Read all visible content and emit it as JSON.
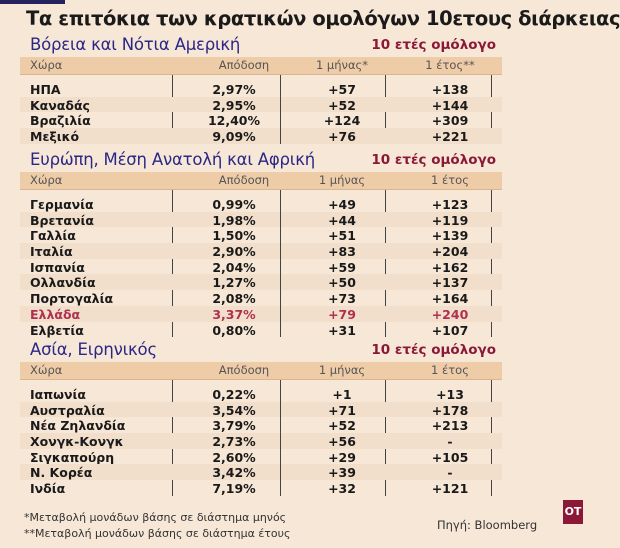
{
  "title": "Τα επιτόκια των κρατικών ομολόγων 10ετους διάρκειας",
  "colors": {
    "heading": "#2b2787",
    "accent": "#8c1838",
    "header_band": "#efcca8",
    "background": "#f6e7d6"
  },
  "sections": [
    {
      "title": "Βόρεια και Νότια Αμερική",
      "subtitle": "10 ετές ομόλογο",
      "columns": [
        "Χώρα",
        "Απόδοση",
        "1 μήνας*",
        "1 έτος**"
      ],
      "rows": [
        [
          "ΗΠΑ",
          "2,97%",
          "+57",
          "+138"
        ],
        [
          "Καναδάς",
          "2,95%",
          "+52",
          "+144"
        ],
        [
          "Βραζιλία",
          "12,40%",
          "+124",
          "+309"
        ],
        [
          "Μεξικό",
          "9,09%",
          "+76",
          "+221"
        ]
      ]
    },
    {
      "title": "Ευρώπη, Μέση Ανατολή και Αφρική",
      "subtitle": "10 ετές ομόλογο",
      "columns": [
        "Χώρα",
        "Απόδοση",
        "1 μήνας",
        "1 έτος"
      ],
      "highlight_row": "Ελλάδα",
      "rows": [
        [
          "Γερμανία",
          "0,99%",
          "+49",
          "+123"
        ],
        [
          "Βρετανία",
          "1,98%",
          "+44",
          "+119"
        ],
        [
          "Γαλλία",
          "1,50%",
          "+51",
          "+139"
        ],
        [
          "Ιταλία",
          "2,90%",
          "+83",
          "+204"
        ],
        [
          "Ισπανία",
          "2,04%",
          "+59",
          "+162"
        ],
        [
          "Ολλανδία",
          "1,27%",
          "+50",
          "+137"
        ],
        [
          "Πορτογαλία",
          "2,08%",
          "+73",
          "+164"
        ],
        [
          "Ελλάδα",
          "3,37%",
          "+79",
          "+240"
        ],
        [
          "Ελβετία",
          "0,80%",
          "+31",
          "+107"
        ]
      ]
    },
    {
      "title": "Ασία, Ειρηνικός",
      "subtitle": "10 ετές ομόλογο",
      "columns": [
        "Χώρα",
        "Απόδοση",
        "1 μήνας",
        "1 έτος"
      ],
      "rows": [
        [
          "Ιαπωνία",
          "0,22%",
          "+1",
          "+13"
        ],
        [
          "Αυστραλία",
          "3,54%",
          "+71",
          "+178"
        ],
        [
          "Νέα Ζηλανδία",
          "3,79%",
          "+52",
          "+213"
        ],
        [
          "Χονγκ-Κονγκ",
          "2,73%",
          "+56",
          "-"
        ],
        [
          "Σιγκαπούρη",
          "2,60%",
          "+29",
          "+105"
        ],
        [
          "Ν. Κορέα",
          "3,42%",
          "+39",
          "-"
        ],
        [
          "Ινδία",
          "7,19%",
          "+32",
          "+121"
        ]
      ]
    }
  ],
  "footnotes": [
    "*Μεταβολή μονάδων βάσης σε διάστημα μηνός",
    "**Μεταβολή μονάδων βάσης σε διάστημα έτους"
  ],
  "source": "Πηγή: Bloomberg",
  "logo": "OT"
}
